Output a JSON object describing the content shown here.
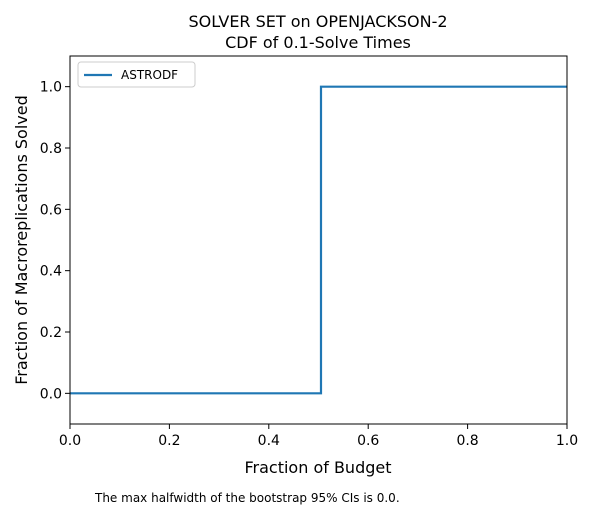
{
  "chart_data": {
    "type": "line",
    "title": "SOLVER SET on OPENJACKSON-2",
    "subtitle": "CDF of 0.1-Solve Times",
    "xlabel": "Fraction of Budget",
    "ylabel": "Fraction of Macroreplications Solved",
    "xlim": [
      0.0,
      1.0
    ],
    "ylim": [
      -0.1,
      1.1
    ],
    "xticks": [
      "0.0",
      "0.2",
      "0.4",
      "0.6",
      "0.8",
      "1.0"
    ],
    "yticks": [
      "0.0",
      "0.2",
      "0.4",
      "0.6",
      "0.8",
      "1.0"
    ],
    "grid": false,
    "legend_position": "top-left",
    "series": [
      {
        "name": "ASTRODF",
        "color": "#1f77b4",
        "step": true,
        "x": [
          0.0,
          0.505,
          0.505,
          1.0
        ],
        "y": [
          0.0,
          0.0,
          1.0,
          1.0
        ]
      }
    ],
    "annotation": "The max halfwidth of the bootstrap 95% CIs is 0.0."
  }
}
